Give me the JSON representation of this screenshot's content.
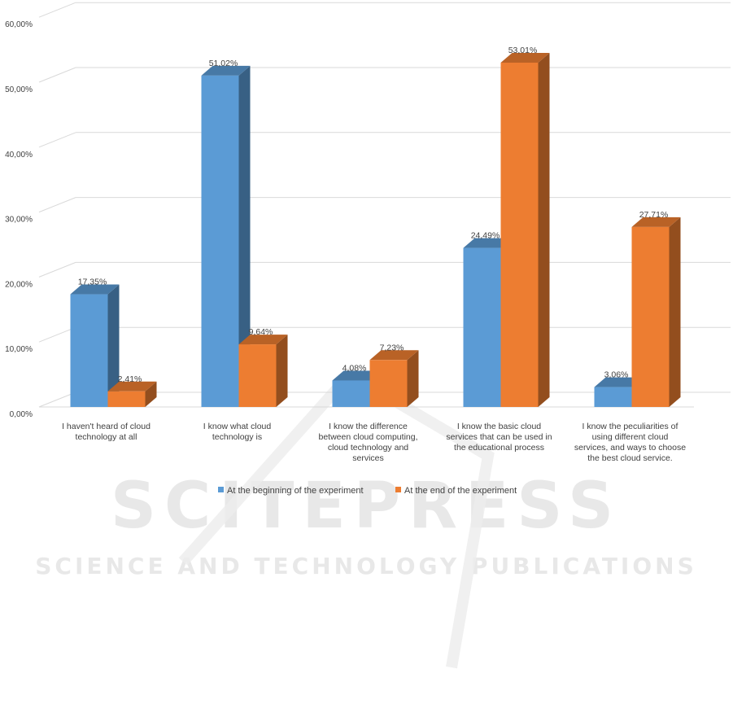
{
  "chart_data": {
    "type": "bar",
    "title": "",
    "xlabel": "",
    "ylabel": "",
    "ylim": [
      0,
      60
    ],
    "y_ticks": [
      "0,00%",
      "10,00%",
      "20,00%",
      "30,00%",
      "40,00%",
      "50,00%",
      "60,00%"
    ],
    "categories": [
      [
        "I haven't heard of cloud",
        "technology at all"
      ],
      [
        "I know what cloud",
        "technology is"
      ],
      [
        "I know the difference",
        "between cloud computing,",
        "cloud technology and",
        "services"
      ],
      [
        "I know the basic cloud",
        "services that can be used in",
        "the educational process"
      ],
      [
        "I know the peculiarities of",
        "using different cloud",
        "services, and ways to choose",
        "the best cloud service."
      ]
    ],
    "series": [
      {
        "name": "At the beginning of the experiment",
        "color": "#5b9bd5",
        "values": [
          17.35,
          51.02,
          4.08,
          24.49,
          3.06
        ],
        "labels": [
          "17,35%",
          "51,02%",
          "4,08%",
          "24,49%",
          "3,06%"
        ]
      },
      {
        "name": "At the end of the experiment",
        "color": "#ed7d31",
        "values": [
          2.41,
          9.64,
          7.23,
          53.01,
          27.71
        ],
        "labels": [
          "2,41%",
          "9,64%",
          "7,23%",
          "53,01%",
          "27,71%"
        ]
      }
    ],
    "grid": true,
    "legend": "bottom"
  },
  "watermark": {
    "line1": "SCITEPRESS",
    "line2": "SCIENCE AND TECHNOLOGY PUBLICATIONS"
  }
}
